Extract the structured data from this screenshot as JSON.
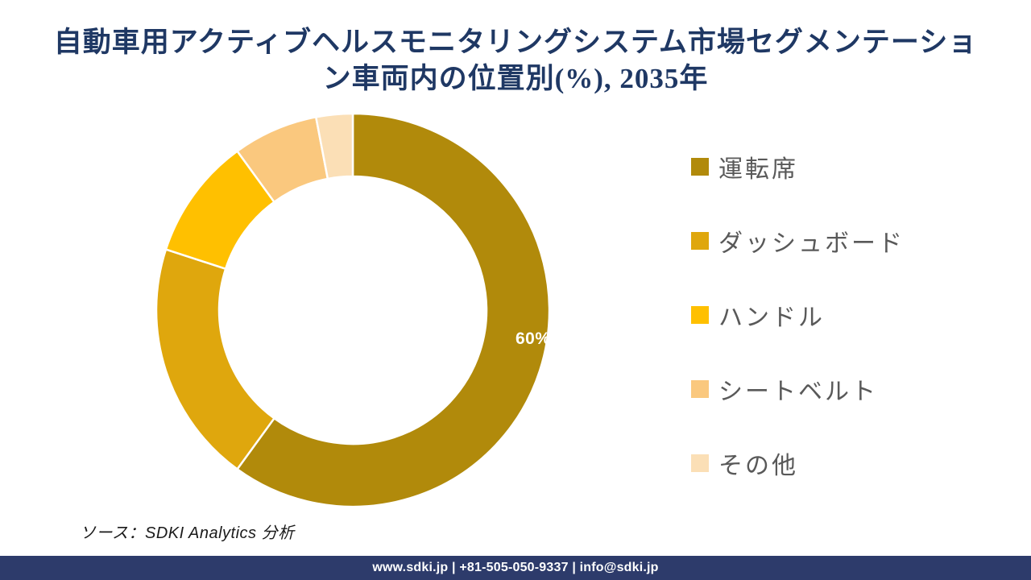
{
  "title": {
    "line1": "自動車用アクティブヘルスモニタリングシステム市場セグメンテーショ",
    "line2": "ン車両内の位置別(%), 2035年",
    "full_text": "自動車用アクティブヘルスモニタリングシステム市場セグメンテーション車両内の位置別(%), 2035年",
    "color": "#1F3864"
  },
  "chart_data": {
    "type": "pie",
    "subtype": "donut",
    "title": "自動車用アクティブヘルスモニタリングシステム市場セグメンテーション車両内の位置別(%), 2035年",
    "unit": "%",
    "categories": [
      "運転席",
      "ダッシュボード",
      "ハンドル",
      "シートベルト",
      "その他"
    ],
    "values": [
      60,
      20,
      10,
      7,
      3
    ],
    "labels": [
      "60%",
      "",
      "",
      "",
      ""
    ],
    "colors": [
      "#B18A0B",
      "#DFA70D",
      "#FFC000",
      "#FAC87E",
      "#FBDFB6"
    ],
    "legend_position": "right",
    "start_angle_deg": 0,
    "inner_radius_ratio": 0.68,
    "separator_color": "#FFFFFF"
  },
  "source": {
    "text": "ソース：SDKI Analytics 分析"
  },
  "footer": {
    "text": "www.sdki.jp | +81-505-050-9337 | info@sdki.jp",
    "background": "#2D3B6B",
    "text_color": "#FFFFFF"
  }
}
